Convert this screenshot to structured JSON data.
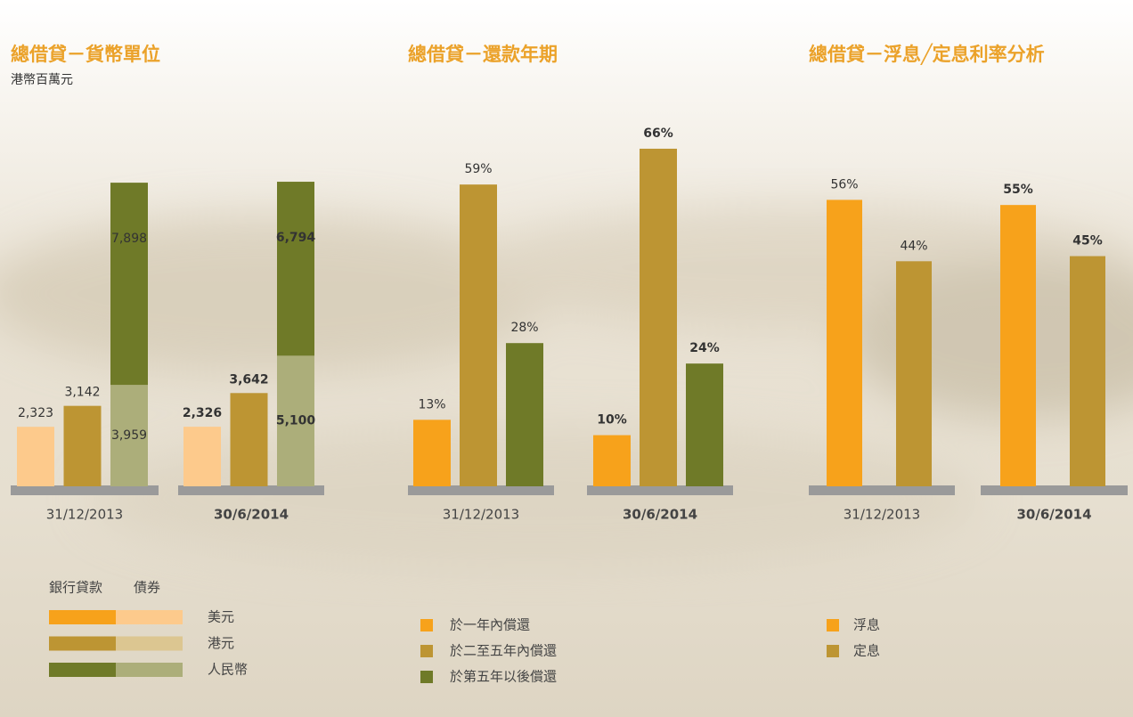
{
  "chart_data": [
    {
      "type": "stacked_bar",
      "title": "總借貸－貨幣單位",
      "subtitle": "港幣百萬元",
      "categories": [
        "31/12/2013",
        "30/6/2014"
      ],
      "ylim": [
        0,
        12000
      ],
      "loan_label": "銀行貸款",
      "bond_label": "債券",
      "series": [
        {
          "name": "美元",
          "loan_color": "#f7a21b",
          "bond_color": "#fdca8c",
          "loans": [
            null,
            null
          ],
          "loan_labels": [
            null,
            null
          ],
          "bonds": [
            2323,
            2326
          ],
          "bond_labels": [
            "2,323",
            "2,326"
          ]
        },
        {
          "name": "港元",
          "loan_color": "#bd9533",
          "bond_color": "#dcc691",
          "loans": [
            3142,
            3642
          ],
          "loan_labels": [
            "3,142",
            "3,642"
          ],
          "bonds": [
            null,
            null
          ],
          "bond_labels": [
            null,
            null
          ]
        },
        {
          "name": "人民幣",
          "loan_color": "#6f7a28",
          "bond_color": "#acae7a",
          "loans": [
            7898,
            6794
          ],
          "loan_labels": [
            "7,898",
            "6,794"
          ],
          "bonds": [
            3959,
            5100
          ],
          "bond_labels": [
            "3,959",
            "5,100"
          ]
        }
      ]
    },
    {
      "type": "bar",
      "title": "總借貸－還款年期",
      "categories": [
        "31/12/2013",
        "30/6/2014"
      ],
      "ylim": [
        0,
        70
      ],
      "series": [
        {
          "name": "於一年內償還",
          "color": "#f7a21b",
          "values": [
            13,
            10
          ],
          "value_labels": [
            "13%",
            "10%"
          ]
        },
        {
          "name": "於二至五年內償還",
          "color": "#bd9533",
          "values": [
            59,
            66
          ],
          "value_labels": [
            "59%",
            "66%"
          ]
        },
        {
          "name": "於第五年以後償還",
          "color": "#6f7a28",
          "values": [
            28,
            24
          ],
          "value_labels": [
            "28%",
            "24%"
          ]
        }
      ]
    },
    {
      "type": "bar",
      "title": "總借貸－浮息╱定息利率分析",
      "categories": [
        "31/12/2013",
        "30/6/2014"
      ],
      "ylim": [
        0,
        70
      ],
      "series": [
        {
          "name": "浮息",
          "color": "#f7a21b",
          "values": [
            56,
            55
          ],
          "value_labels": [
            "56%",
            "55%"
          ]
        },
        {
          "name": "定息",
          "color": "#bd9533",
          "values": [
            44,
            45
          ],
          "value_labels": [
            "44%",
            "45%"
          ]
        }
      ]
    }
  ]
}
